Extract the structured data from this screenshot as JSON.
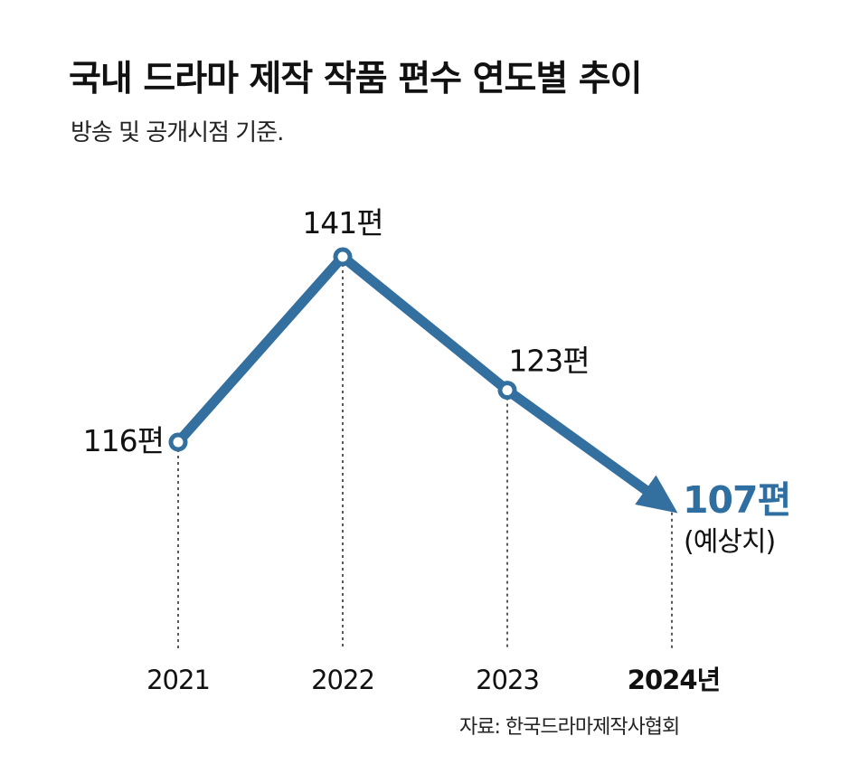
{
  "title": "국내 드라마 제작 작품 편수 연도별 추이",
  "subtitle": "방송 및 공개시점 기준.",
  "source": "자료: 한국드라마제작사협회",
  "colors": {
    "line": "#336f9f",
    "highlight": "#2e6ea1",
    "text": "#111111"
  },
  "chart_data": {
    "type": "line",
    "title": "국내 드라마 제작 작품 편수 연도별 추이",
    "subtitle": "방송 및 공개시점 기준.",
    "xlabel": "",
    "ylabel": "",
    "grid": false,
    "x": [
      "2021",
      "2022",
      "2023",
      "2024년"
    ],
    "series": [
      {
        "values": [
          116,
          141,
          123,
          107
        ],
        "data_labels": [
          "116편",
          "141편",
          "123편",
          "107편"
        ]
      }
    ],
    "annotations": [
      {
        "x": "2024년",
        "text": "(예상치)"
      }
    ],
    "ylim": [
      95,
      145
    ]
  }
}
